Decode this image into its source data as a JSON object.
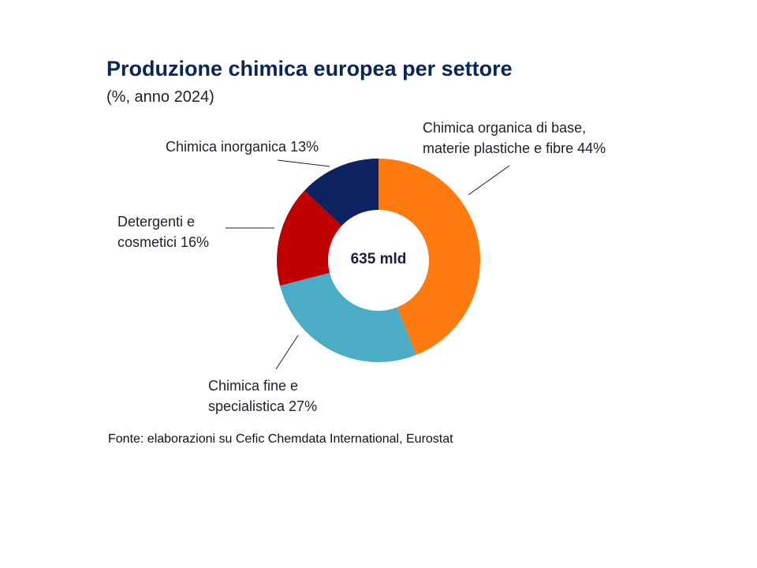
{
  "chart_data": {
    "type": "pie",
    "title": "Produzione chimica europea per settore",
    "subtitle": "(%, anno 2024)",
    "center_label": "635 mld",
    "slices": [
      {
        "label_lines": [
          "Chimica organica di base,",
          "materie plastiche e fibre 44%"
        ],
        "value": 44,
        "color": "#ff7a0f"
      },
      {
        "label_lines": [
          "Chimica fine e",
          "specialistica 27%"
        ],
        "value": 27,
        "color": "#4bacc6"
      },
      {
        "label_lines": [
          "Detergenti e",
          "cosmetici 16%"
        ],
        "value": 16,
        "color": "#c00000"
      },
      {
        "label_lines": [
          "Chimica inorganica 13%"
        ],
        "value": 13,
        "color": "#0e2460"
      }
    ]
  },
  "source": "Fonte: elaborazioni su Cefic Chemdata International, Eurostat"
}
